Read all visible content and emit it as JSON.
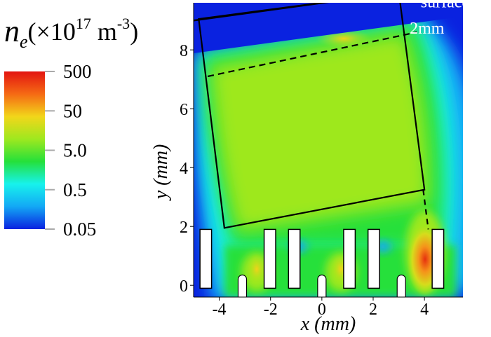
{
  "chart_data": {
    "type": "heatmap",
    "quantity_symbol": "n",
    "quantity_subscript": "e",
    "units_prefix": "(×10",
    "units_exponent": "17",
    "units_base": " m",
    "units_exponent2": "-3",
    "units_suffix": ")",
    "colorbar": {
      "scale": "log",
      "range": [
        0.05,
        500
      ],
      "ticks": [
        {
          "value": 500,
          "label": "500"
        },
        {
          "value": 50,
          "label": "50"
        },
        {
          "value": 5,
          "label": "5.0"
        },
        {
          "value": 0.5,
          "label": "0.5"
        },
        {
          "value": 0.05,
          "label": "0.05"
        }
      ],
      "colors": [
        "#0a22e0",
        "#13a8f5",
        "#17f2ec",
        "#25e03a",
        "#9ee81f",
        "#f2d61a",
        "#f56a14",
        "#e31410"
      ]
    },
    "xlabel": "x (mm)",
    "ylabel": "y (mm)",
    "xlim": [
      -5,
      5.5
    ],
    "ylim": [
      -0.4,
      9.6
    ],
    "xticks": [
      {
        "value": -4,
        "label": "-4"
      },
      {
        "value": -2,
        "label": "-2"
      },
      {
        "value": 0,
        "label": "0"
      },
      {
        "value": 2,
        "label": "2"
      },
      {
        "value": 4,
        "label": "4"
      }
    ],
    "yticks": [
      {
        "value": 0,
        "label": "0"
      },
      {
        "value": 2,
        "label": "2"
      },
      {
        "value": 4,
        "label": "4"
      },
      {
        "value": 6,
        "label": "6"
      },
      {
        "value": 8,
        "label": "8"
      }
    ],
    "annotations": [
      {
        "text": "surface",
        "x": 4.8,
        "y": 9.45
      },
      {
        "text": "2mm",
        "x": 4.1,
        "y": 8.55
      }
    ],
    "electrodes": [
      {
        "x_left": -4.75,
        "x_right": -4.3,
        "y_top": 1.9,
        "y_bottom": -0.1
      },
      {
        "x_left": -2.25,
        "x_right": -1.8,
        "y_top": 1.9,
        "y_bottom": -0.1
      },
      {
        "x_left": -1.3,
        "x_right": -0.85,
        "y_top": 1.9,
        "y_bottom": -0.1
      },
      {
        "x_left": 0.85,
        "x_right": 1.3,
        "y_top": 1.9,
        "y_bottom": -0.1
      },
      {
        "x_left": 1.8,
        "x_right": 2.25,
        "y_top": 1.9,
        "y_bottom": -0.1
      },
      {
        "x_left": 4.3,
        "x_right": 4.75,
        "y_top": 1.9,
        "y_bottom": -0.1
      }
    ],
    "needles": [
      {
        "x": -3.1,
        "y_top": 0.35
      },
      {
        "x": 0.0,
        "y_top": 0.35
      },
      {
        "x": 3.1,
        "y_top": 0.35
      }
    ],
    "regions": {
      "surface_line": [
        [
          -5.0,
          9.0
        ],
        [
          3.4,
          10.0
        ]
      ],
      "box": [
        [
          -4.8,
          9.05
        ],
        [
          3.0,
          9.95
        ],
        [
          4.0,
          3.25
        ],
        [
          -3.8,
          1.95
        ]
      ],
      "dashed_2mm": [
        [
          -4.45,
          7.1
        ],
        [
          3.7,
          8.6
        ]
      ],
      "dashed_side": [
        [
          3.95,
          3.25
        ],
        [
          4.15,
          1.9
        ]
      ]
    }
  }
}
